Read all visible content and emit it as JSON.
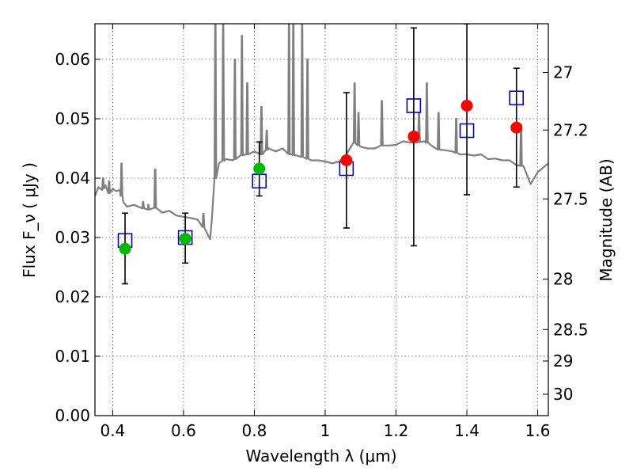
{
  "chart_data": {
    "type": "scatter",
    "title": "",
    "xlabel": "Wavelength  λ (μm)",
    "ylabel": "Flux  F_ν  ( μJy )",
    "y2label": "Magnitude (AB)",
    "xlim": [
      0.35,
      1.63
    ],
    "ylim": [
      0.0,
      0.066
    ],
    "grid": true,
    "x_ticks": [
      0.4,
      0.6,
      0.8,
      1.0,
      1.2,
      1.4,
      1.6
    ],
    "x_tick_labels": [
      "0.4",
      "0.6",
      "0.8",
      "1",
      "1.2",
      "1.4",
      "1.6"
    ],
    "y_ticks": [
      0.0,
      0.01,
      0.02,
      0.03,
      0.04,
      0.05,
      0.06
    ],
    "y_tick_labels": [
      "0.00",
      "0.01",
      "0.02",
      "0.03",
      "0.04",
      "0.05",
      "0.06"
    ],
    "y2_ticks": [
      {
        "label": "27",
        "flux": 0.0578
      },
      {
        "label": "27.2",
        "flux": 0.0481
      },
      {
        "label": "27.5",
        "flux": 0.0365
      },
      {
        "label": "28",
        "flux": 0.023
      },
      {
        "label": "28.5",
        "flux": 0.0145
      },
      {
        "label": "29",
        "flux": 0.0092
      },
      {
        "label": "30",
        "flux": 0.0036
      }
    ],
    "colors": {
      "model": "#808080",
      "green": "#00bb00",
      "red": "#ff0000",
      "square": "#0000cc",
      "errorbar": "#000000",
      "grid": "#555555"
    },
    "series": [
      {
        "marker": "square",
        "x": [
          0.435,
          0.605,
          0.814,
          1.06,
          1.25,
          1.4,
          1.54
        ],
        "y": [
          0.0295,
          0.03,
          0.0395,
          0.0416,
          0.0522,
          0.048,
          0.0535
        ]
      },
      {
        "marker": "circle-green",
        "x": [
          0.435,
          0.605,
          0.814
        ],
        "y": [
          0.0281,
          0.0298,
          0.0416
        ],
        "yerr_low": [
          0.0222,
          0.0257,
          0.037
        ],
        "yerr_high": [
          0.0341,
          0.0341,
          0.0461
        ]
      },
      {
        "marker": "circle-red",
        "x": [
          1.06,
          1.25,
          1.4,
          1.54
        ],
        "y": [
          0.043,
          0.047,
          0.0522,
          0.0485
        ],
        "yerr_low": [
          0.0316,
          0.0286,
          0.0372,
          0.0385
        ],
        "yerr_high": [
          0.0544,
          0.0653,
          0.066,
          0.0585
        ]
      }
    ],
    "model_spectrum": {
      "x": [
        0.35,
        0.36,
        0.37,
        0.38,
        0.39,
        0.4,
        0.41,
        0.42,
        0.43,
        0.44,
        0.46,
        0.48,
        0.5,
        0.52,
        0.54,
        0.56,
        0.58,
        0.6,
        0.62,
        0.64,
        0.66,
        0.675,
        0.68,
        0.69,
        0.7,
        0.72,
        0.74,
        0.76,
        0.78,
        0.8,
        0.82,
        0.84,
        0.86,
        0.88,
        0.9,
        0.92,
        0.94,
        0.96,
        0.98,
        1.0,
        1.02,
        1.04,
        1.06,
        1.08,
        1.1,
        1.12,
        1.14,
        1.16,
        1.18,
        1.2,
        1.22,
        1.24,
        1.26,
        1.28,
        1.3,
        1.32,
        1.34,
        1.36,
        1.38,
        1.4,
        1.42,
        1.44,
        1.46,
        1.48,
        1.5,
        1.52,
        1.54,
        1.56,
        1.58,
        1.6,
        1.62,
        1.63
      ],
      "y": [
        0.037,
        0.0385,
        0.038,
        0.0388,
        0.0375,
        0.0382,
        0.0378,
        0.038,
        0.036,
        0.0352,
        0.0355,
        0.035,
        0.0347,
        0.035,
        0.0342,
        0.0345,
        0.0337,
        0.0335,
        0.0333,
        0.033,
        0.0315,
        0.0297,
        0.033,
        0.04,
        0.0425,
        0.0432,
        0.043,
        0.0438,
        0.044,
        0.0445,
        0.044,
        0.045,
        0.0445,
        0.045,
        0.044,
        0.0438,
        0.0435,
        0.043,
        0.043,
        0.0428,
        0.0425,
        0.0428,
        0.044,
        0.046,
        0.0453,
        0.045,
        0.045,
        0.0455,
        0.0455,
        0.0456,
        0.0462,
        0.046,
        0.046,
        0.0462,
        0.0455,
        0.0448,
        0.0447,
        0.0445,
        0.044,
        0.044,
        0.0438,
        0.044,
        0.0432,
        0.0433,
        0.043,
        0.043,
        0.0422,
        0.042,
        0.039,
        0.041,
        0.042,
        0.0425
      ]
    },
    "emission_lines": [
      {
        "x": 0.373,
        "peak": 0.04
      },
      {
        "x": 0.39,
        "peak": 0.0395
      },
      {
        "x": 0.425,
        "peak": 0.0425
      },
      {
        "x": 0.4861,
        "peak": 0.036
      },
      {
        "x": 0.5007,
        "peak": 0.0355
      },
      {
        "x": 0.52,
        "peak": 0.0415
      },
      {
        "x": 0.6563,
        "peak": 0.034
      },
      {
        "x": 0.69,
        "peak": 0.066
      },
      {
        "x": 0.712,
        "peak": 0.066
      },
      {
        "x": 0.745,
        "peak": 0.06
      },
      {
        "x": 0.765,
        "peak": 0.064
      },
      {
        "x": 0.78,
        "peak": 0.056
      },
      {
        "x": 0.82,
        "peak": 0.052
      },
      {
        "x": 0.835,
        "peak": 0.048
      },
      {
        "x": 0.898,
        "peak": 0.066
      },
      {
        "x": 0.91,
        "peak": 0.066
      },
      {
        "x": 0.935,
        "peak": 0.066
      },
      {
        "x": 0.95,
        "peak": 0.06
      },
      {
        "x": 1.083,
        "peak": 0.056
      },
      {
        "x": 1.094,
        "peak": 0.051
      },
      {
        "x": 1.16,
        "peak": 0.053
      },
      {
        "x": 1.265,
        "peak": 0.051
      },
      {
        "x": 1.287,
        "peak": 0.056
      },
      {
        "x": 1.32,
        "peak": 0.051
      },
      {
        "x": 1.37,
        "peak": 0.05
      },
      {
        "x": 1.553,
        "peak": 0.049
      }
    ]
  }
}
